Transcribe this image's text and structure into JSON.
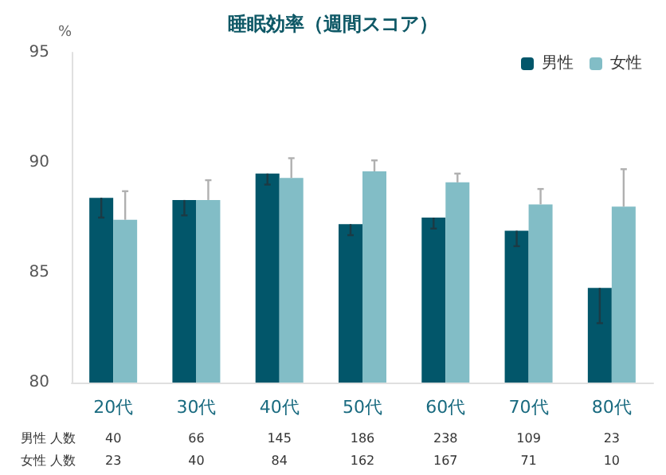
{
  "chart_data": {
    "type": "bar",
    "title": "睡眠効率（週間スコア）",
    "ylabel": "%",
    "categories": [
      "20代",
      "30代",
      "40代",
      "50代",
      "60代",
      "70代",
      "80代"
    ],
    "series": [
      {
        "name": "男性",
        "color": "#02566a",
        "values": [
          88.4,
          88.3,
          89.5,
          87.2,
          87.5,
          86.9,
          84.3
        ],
        "errors": [
          [
            87.5,
            88.4
          ],
          [
            87.6,
            88.3
          ],
          [
            89.0,
            89.5
          ],
          [
            86.7,
            87.2
          ],
          [
            87.0,
            87.5
          ],
          [
            86.2,
            86.9
          ],
          [
            82.7,
            84.3
          ]
        ]
      },
      {
        "name": "女性",
        "color": "#82bdc6",
        "values": [
          87.4,
          88.3,
          89.3,
          89.6,
          89.1,
          88.1,
          88.0
        ],
        "errors": [
          [
            87.4,
            88.7
          ],
          [
            88.3,
            89.2
          ],
          [
            89.3,
            90.2
          ],
          [
            89.6,
            90.1
          ],
          [
            89.1,
            89.5
          ],
          [
            88.1,
            88.8
          ],
          [
            88.0,
            89.7
          ]
        ]
      }
    ],
    "ylim": [
      80,
      95
    ],
    "yticks": [
      80,
      85,
      90,
      95
    ],
    "grid": false,
    "legend": "top right",
    "annotations": [
      "男性 人数",
      "40",
      "66",
      "145",
      "186",
      "238",
      "109",
      "23",
      "女性 人数",
      "23",
      "40",
      "84",
      "162",
      "167",
      "71",
      "10"
    ]
  }
}
